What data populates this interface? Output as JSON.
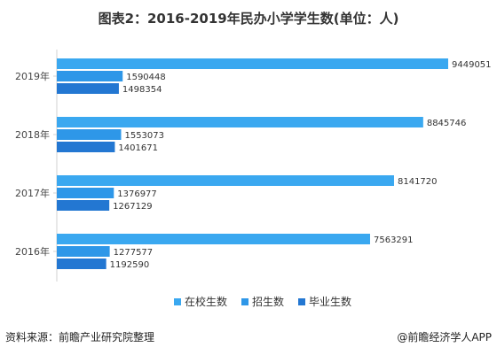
{
  "title": "图表2：2016-2019年民办小学学生数(单位：人)",
  "source": "资料来源：前瞻产业研究院整理",
  "brand": "@前瞻经济学人APP",
  "chart_data": {
    "type": "bar",
    "orientation": "horizontal",
    "categories": [
      "2019年",
      "2018年",
      "2017年",
      "2016年"
    ],
    "series": [
      {
        "name": "在校生数",
        "color": "#3aa8f0",
        "values": [
          9449051,
          8845746,
          8141720,
          7563291
        ]
      },
      {
        "name": "招生数",
        "color": "#2e97e8",
        "values": [
          1590448,
          1553073,
          1376977,
          1277577
        ]
      },
      {
        "name": "毕业生数",
        "color": "#2377d2",
        "values": [
          1498354,
          1401671,
          1267129,
          1192590
        ]
      }
    ],
    "xlim": [
      0,
      9449051
    ],
    "grid": false,
    "legend": "bottom"
  }
}
